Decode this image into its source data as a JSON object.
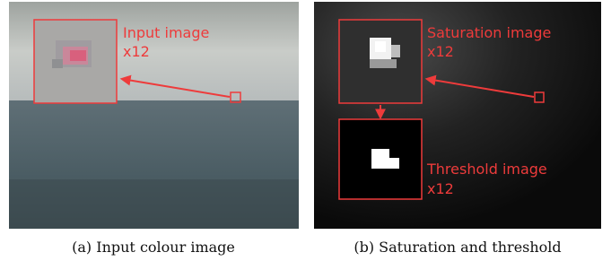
{
  "panels": [
    {
      "zoom_labels": [
        {
          "title": "Input image",
          "scale": "x12"
        }
      ],
      "caption": "(a) Input colour image"
    },
    {
      "zoom_labels": [
        {
          "title": "Saturation image",
          "scale": "x12"
        },
        {
          "title": "Threshold image",
          "scale": "x12"
        }
      ],
      "caption": "(b) Saturation and threshold"
    }
  ]
}
